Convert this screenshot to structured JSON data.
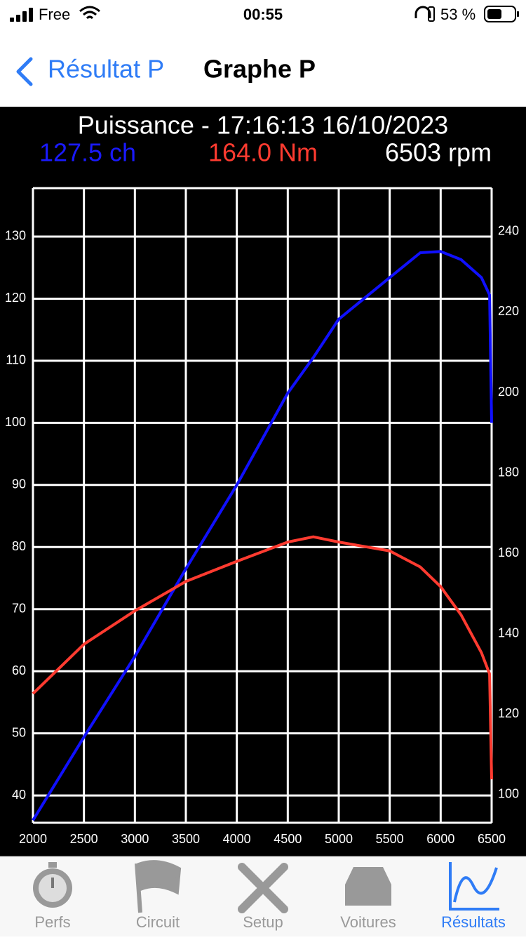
{
  "status_bar": {
    "carrier": "Free",
    "time": "00:55",
    "battery": "53 %"
  },
  "nav": {
    "back": "Résultat P",
    "title": "Graphe P"
  },
  "chart_data": {
    "type": "line",
    "title": "Puissance - 17:16:13 16/10/2023",
    "readouts": [
      {
        "text": "127.5 ch",
        "color": "#1a1aff"
      },
      {
        "text": "164.0 Nm",
        "color": "#ff3b30"
      },
      {
        "text": "6503 rpm",
        "color": "#ffffff"
      }
    ],
    "x": [
      2000,
      2500,
      3000,
      3500,
      4000,
      4500,
      4750,
      5000,
      5500,
      5800,
      6000,
      6200,
      6400,
      6480,
      6500
    ],
    "series": [
      {
        "color": "#1010ff",
        "axis": "y",
        "values": [
          36,
          49.4,
          62.4,
          76.5,
          90,
          104.8,
          110.5,
          116.7,
          123.4,
          127.4,
          127.6,
          126.3,
          123.4,
          120.6,
          100
        ]
      },
      {
        "color": "#ff3b30",
        "axis": "y2",
        "values": [
          125.1,
          137.4,
          145.7,
          153,
          158,
          162.8,
          164.1,
          162.8,
          160.6,
          156.6,
          151.7,
          144.7,
          135.3,
          130,
          103.8
        ]
      }
    ],
    "xlim": [
      2000,
      6500
    ],
    "xticks": [
      2000,
      2500,
      3000,
      3500,
      4000,
      4500,
      5000,
      5500,
      6000,
      6500
    ],
    "ylim": [
      35.6,
      137.8
    ],
    "yticks": [
      40,
      50,
      60,
      70,
      80,
      90,
      100,
      110,
      120,
      130
    ],
    "y2lim": [
      93,
      250.8
    ],
    "y2ticks": [
      100,
      120,
      140,
      160,
      180,
      200,
      220,
      240
    ],
    "grid": true
  },
  "tabs": [
    {
      "label": "Perfs",
      "active": false
    },
    {
      "label": "Circuit",
      "active": false
    },
    {
      "label": "Setup",
      "active": false
    },
    {
      "label": "Voitures",
      "active": false
    },
    {
      "label": "Résultats",
      "active": true
    }
  ]
}
